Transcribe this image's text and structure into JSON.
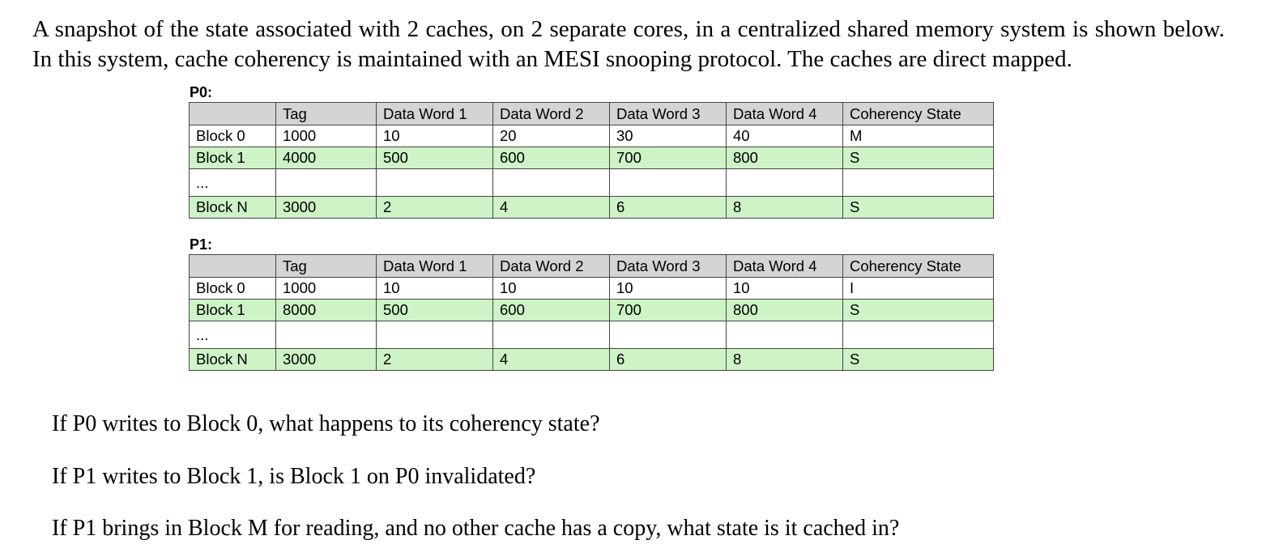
{
  "intro": "A snapshot of the state associated with 2 caches, on 2 separate cores, in a centralized shared memory system is shown below. In this system, cache coherency is maintained with an MESI snooping protocol. The caches are direct mapped.",
  "p0": {
    "label": "P0:",
    "header": [
      "",
      "Tag",
      "Data Word 1",
      "Data Word 2",
      "Data Word 3",
      "Data Word 4",
      "Coherency State"
    ],
    "rows": [
      [
        "Block 0",
        "1000",
        "10",
        "20",
        "30",
        "40",
        "M"
      ],
      [
        "Block 1",
        "4000",
        "500",
        "600",
        "700",
        "800",
        "S"
      ],
      [
        "...",
        "",
        "",
        "",
        "",
        "",
        ""
      ],
      [
        "Block N",
        "3000",
        "2",
        "4",
        "6",
        "8",
        "S"
      ]
    ]
  },
  "p1": {
    "label": "P1:",
    "header": [
      "",
      "Tag",
      "Data Word 1",
      "Data Word 2",
      "Data Word 3",
      "Data Word 4",
      "Coherency State"
    ],
    "rows": [
      [
        "Block 0",
        "1000",
        "10",
        "10",
        "10",
        "10",
        "I"
      ],
      [
        "Block 1",
        "8000",
        "500",
        "600",
        "700",
        "800",
        "S"
      ],
      [
        "...",
        "",
        "",
        "",
        "",
        "",
        ""
      ],
      [
        "Block N",
        "3000",
        "2",
        "4",
        "6",
        "8",
        "S"
      ]
    ]
  },
  "questions": [
    "If P0 writes to Block 0, what happens to its coherency state?",
    "If P1 writes to Block 1, is Block 1 on P0 invalidated?",
    "If P1 brings in Block M for reading, and no other cache has a copy, what state is it cached in?"
  ],
  "colors": {
    "header": "#d4d4d4",
    "green": "#cdf3c6",
    "white": "#ffffff"
  }
}
